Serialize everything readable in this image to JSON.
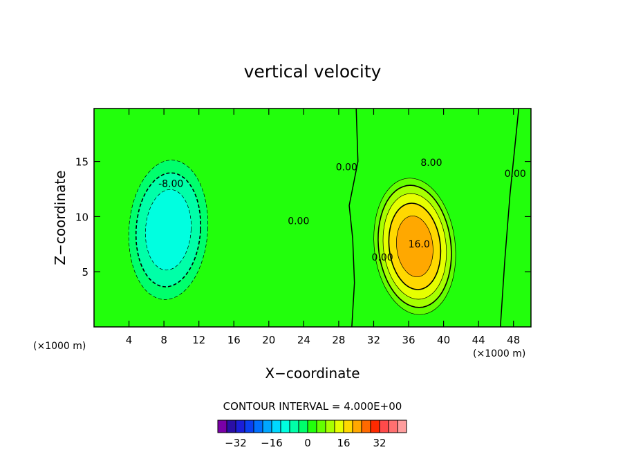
{
  "chart_data": {
    "type": "heatmap",
    "title": "vertical velocity",
    "xlabel": "X−coordinate",
    "ylabel": "Z−coordinate",
    "x_unit_left": "(×1000 m)",
    "x_unit_right": "(×1000 m)",
    "xlim": [
      0,
      50
    ],
    "ylim": [
      0,
      19.8
    ],
    "x_ticks": [
      4,
      8,
      12,
      16,
      20,
      24,
      28,
      32,
      36,
      40,
      44,
      48
    ],
    "x_tick_labels": [
      "4",
      "8",
      "12",
      "16",
      "20",
      "24",
      "28",
      "32",
      "36",
      "40",
      "44",
      "48"
    ],
    "y_ticks": [
      5,
      10,
      15
    ],
    "y_tick_labels": [
      "5",
      "10",
      "15"
    ],
    "contour_interval_text": "CONTOUR INTERVAL = 4.000E+00",
    "contour_labels": [
      {
        "text": "-8.00",
        "x": 8.8,
        "y": 12.7
      },
      {
        "text": "0.00",
        "x": 23.4,
        "y": 9.3
      },
      {
        "text": "0.00",
        "x": 28.9,
        "y": 14.2
      },
      {
        "text": "0.00",
        "x": 33.0,
        "y": 6.0
      },
      {
        "text": "8.00",
        "x": 38.6,
        "y": 14.6
      },
      {
        "text": "16.0",
        "x": 37.2,
        "y": 7.2
      },
      {
        "text": "0.00",
        "x": 48.2,
        "y": 13.6
      }
    ],
    "cells": {
      "x_range": [
        0,
        50
      ],
      "z_range": [
        0,
        19.8
      ],
      "updraft": {
        "cx": 36.7,
        "cz": 7.3,
        "peak": 22,
        "rx": 3.4,
        "rz": 5.2
      },
      "downdraft": {
        "cx": 8.5,
        "cz": 8.8,
        "peak": -14,
        "rx": 4.0,
        "rz": 5.6
      }
    },
    "colorbar": {
      "levels": [
        -36,
        -32,
        -28,
        -24,
        -20,
        -16,
        -12,
        -8,
        -4,
        0,
        4,
        8,
        12,
        16,
        20,
        24,
        28,
        32,
        36
      ],
      "colors": [
        "#7b00a8",
        "#2a0fa6",
        "#1b1ed8",
        "#0a3ff0",
        "#0070ff",
        "#00a6ff",
        "#00d8ff",
        "#00ffe0",
        "#00ffa8",
        "#00ff6c",
        "#22ff0c",
        "#64ff00",
        "#a8ff00",
        "#e6ff00",
        "#ffd800",
        "#ffa800",
        "#ff6a00",
        "#ff2a00",
        "#ff4a4a",
        "#ff7070",
        "#ff9e9e"
      ],
      "tick_values": [
        -32,
        -16,
        0,
        16,
        32
      ],
      "tick_labels": [
        "−32",
        "−16",
        "0",
        "16",
        "32"
      ]
    }
  }
}
